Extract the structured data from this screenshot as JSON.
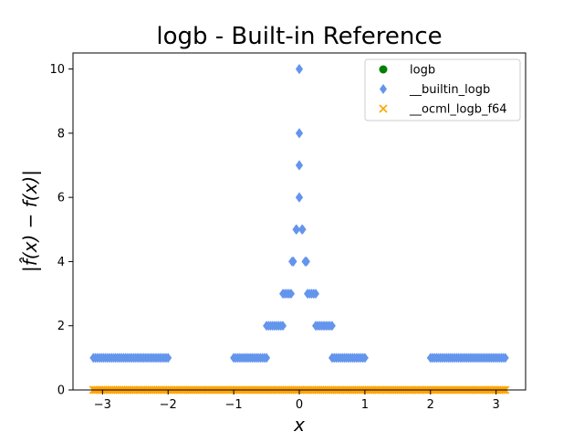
{
  "chart_data": {
    "type": "scatter",
    "title": "logb - Built-in Reference",
    "xlabel": "x",
    "ylabel": "|f̂(x) − f(x)|",
    "xlim": [
      -3.45,
      3.45
    ],
    "ylim": [
      0,
      10.5
    ],
    "xticks": [
      -3,
      -2,
      -1,
      0,
      1,
      2,
      3
    ],
    "xtick_labels": [
      "−3",
      "−2",
      "−1",
      "0",
      "1",
      "2",
      "3"
    ],
    "yticks": [
      0,
      2,
      4,
      6,
      8,
      10
    ],
    "ytick_labels": [
      "0",
      "2",
      "4",
      "6",
      "8",
      "10"
    ],
    "grid": false,
    "legend_position": "top-right",
    "series": [
      {
        "name": "logb",
        "marker": "circle",
        "color": "#008000",
        "segments": []
      },
      {
        "name": "__builtin_logb",
        "marker": "thin_diamond",
        "color": "#6495ED",
        "segments": [
          {
            "x_from": -3.14,
            "x_to": -2.0,
            "y": 1
          },
          {
            "x_from": -1.0,
            "x_to": -0.5,
            "y": 1
          },
          {
            "x_from": -0.5,
            "x_to": -0.25,
            "y": 2
          },
          {
            "x_from": -0.25,
            "x_to": -0.125,
            "y": 3
          },
          {
            "x_from": -0.11,
            "x_to": -0.09,
            "y": 4
          },
          {
            "x_from": -0.05,
            "x_to": -0.04,
            "y": 5
          },
          {
            "x_from": -0.002,
            "x_to": 0.002,
            "y": 6
          },
          {
            "x_from": -0.001,
            "x_to": 0.001,
            "y": 7
          },
          {
            "x_from": -0.0005,
            "x_to": 0.0005,
            "y": 8
          },
          {
            "x_from": 0.0,
            "x_to": 0.0,
            "y": 10
          },
          {
            "x_from": 0.04,
            "x_to": 0.05,
            "y": 5
          },
          {
            "x_from": 0.09,
            "x_to": 0.11,
            "y": 4
          },
          {
            "x_from": 0.125,
            "x_to": 0.25,
            "y": 3
          },
          {
            "x_from": 0.25,
            "x_to": 0.5,
            "y": 2
          },
          {
            "x_from": 0.5,
            "x_to": 1.0,
            "y": 1
          },
          {
            "x_from": 2.0,
            "x_to": 3.14,
            "y": 1
          }
        ]
      },
      {
        "name": "__ocml_logb_f64",
        "marker": "x",
        "color": "#FFA500",
        "segments": [
          {
            "x_from": -3.14,
            "x_to": 3.14,
            "y": 0
          }
        ]
      }
    ]
  }
}
